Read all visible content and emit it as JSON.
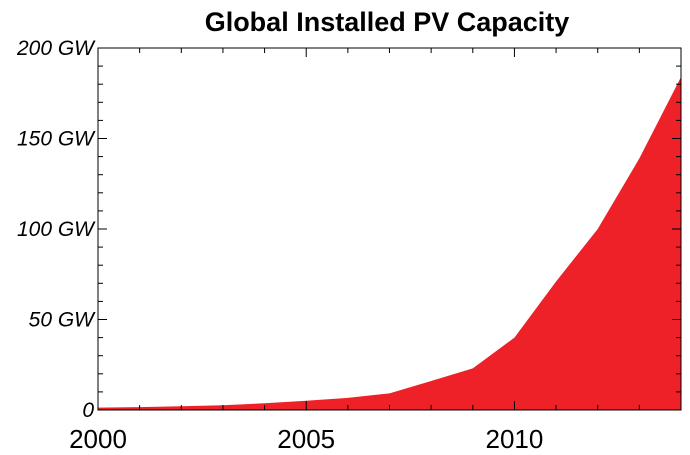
{
  "chart_data": {
    "type": "area",
    "title": "Global Installed PV Capacity",
    "xlabel": "",
    "ylabel": "",
    "x": [
      2000,
      2001,
      2002,
      2003,
      2004,
      2005,
      2006,
      2007,
      2008,
      2009,
      2010,
      2011,
      2012,
      2013,
      2014
    ],
    "series": [
      {
        "values": [
          1.3,
          1.6,
          2.1,
          2.6,
          3.7,
          5.1,
          6.7,
          9.2,
          16,
          23,
          40,
          71,
          100,
          139,
          184
        ],
        "color": "#ee2028"
      }
    ],
    "xlim": [
      2000,
      2014
    ],
    "ylim": [
      0,
      200
    ],
    "x_ticks": [
      2000,
      2005,
      2010
    ],
    "x_tick_labels": [
      "2000",
      "2005",
      "2010"
    ],
    "y_ticks": [
      0,
      50,
      100,
      150,
      200
    ],
    "y_tick_labels": [
      "0",
      "50 GW",
      "100 GW",
      "150 GW",
      "200 GW"
    ],
    "grid": false,
    "legend": "none"
  }
}
